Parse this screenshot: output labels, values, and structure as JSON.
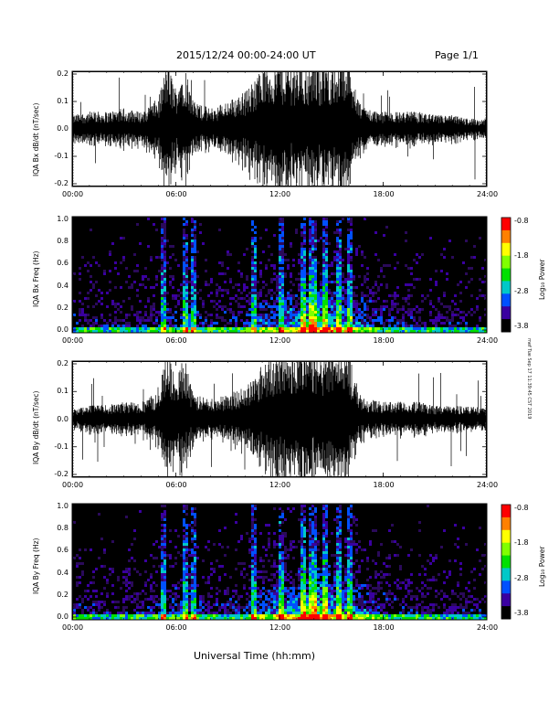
{
  "header": {
    "date_range": "2015/12/24  00:00-24:00 UT",
    "page": "Page 1/1"
  },
  "xaxis": {
    "ticks": [
      "00:00",
      "06:00",
      "12:00",
      "18:00",
      "24:00"
    ],
    "label": "Universal Time (hh:mm)"
  },
  "colorbar": {
    "ticks": [
      "-0.8",
      "-1.8",
      "-2.8",
      "-3.8"
    ],
    "label": "Log₁₀ Power",
    "colors": [
      "#ff0000",
      "#ff8000",
      "#ffff00",
      "#80ff00",
      "#00e000",
      "#00c8c8",
      "#0050ff",
      "#3a00a0",
      "#000000"
    ]
  },
  "side_stamp": "mef Tue Sep 17 11:39:45 CST 2019",
  "chart_data": [
    {
      "type": "line",
      "title": "",
      "ylabel": "IQA Bx dB/dt (nT/sec)",
      "xlabel": "",
      "xlim": [
        "00:00",
        "24:00"
      ],
      "ylim": [
        -0.2,
        0.2
      ],
      "yticks": [
        "0.2",
        "0.1",
        "0.0",
        "-0.1",
        "-0.2"
      ],
      "grid": false,
      "series": [
        {
          "x_hours": [
            0,
            1,
            2,
            3,
            4,
            5,
            5.5,
            6,
            6.5,
            7,
            8,
            9,
            10,
            10.5,
            11,
            12,
            13,
            14,
            15,
            16,
            16.5,
            17,
            18,
            19,
            20,
            21,
            22,
            23,
            24
          ],
          "amplitude": [
            0.04,
            0.05,
            0.05,
            0.06,
            0.05,
            0.09,
            0.2,
            0.12,
            0.2,
            0.08,
            0.06,
            0.08,
            0.11,
            0.14,
            0.18,
            0.2,
            0.2,
            0.2,
            0.2,
            0.2,
            0.09,
            0.06,
            0.05,
            0.05,
            0.05,
            0.04,
            0.04,
            0.03,
            0.03
          ]
        }
      ]
    },
    {
      "type": "heatmap",
      "title": "",
      "ylabel": "IQA Bx Freq (Hz)",
      "xlabel": "",
      "xlim": [
        "00:00",
        "24:00"
      ],
      "ylim": [
        0.0,
        1.0
      ],
      "yticks": [
        "1.0",
        "0.8",
        "0.6",
        "0.4",
        "0.2",
        "0.0"
      ],
      "zlim": [
        -3.8,
        -0.8
      ],
      "bursts_hours": [
        5.2,
        6.5,
        7.0,
        10.5,
        12.0,
        13.3,
        13.8,
        14.0,
        14.6,
        15.3,
        16.0
      ],
      "activity_hours": [
        0,
        2,
        4,
        6,
        8,
        10,
        12,
        13,
        14,
        15,
        16,
        17,
        18,
        20,
        22,
        24
      ],
      "activity_level": [
        0.25,
        0.2,
        0.25,
        0.35,
        0.25,
        0.3,
        0.5,
        0.6,
        0.8,
        0.6,
        0.5,
        0.4,
        0.3,
        0.22,
        0.2,
        0.2
      ]
    },
    {
      "type": "line",
      "title": "",
      "ylabel": "IQA By dB/dt (nT/sec)",
      "xlabel": "",
      "xlim": [
        "00:00",
        "24:00"
      ],
      "ylim": [
        -0.2,
        0.2
      ],
      "yticks": [
        "0.2",
        "0.1",
        "0.0",
        "-0.1",
        "-0.2"
      ],
      "grid": false,
      "series": [
        {
          "x_hours": [
            0,
            1,
            2,
            3,
            4,
            5,
            5.5,
            6,
            6.5,
            7,
            8,
            9,
            10,
            10.5,
            11,
            12,
            13,
            14,
            15,
            16,
            16.5,
            17,
            18,
            19,
            20,
            21,
            22,
            23,
            24
          ],
          "amplitude": [
            0.03,
            0.04,
            0.04,
            0.05,
            0.05,
            0.08,
            0.2,
            0.11,
            0.2,
            0.07,
            0.06,
            0.07,
            0.1,
            0.12,
            0.16,
            0.2,
            0.2,
            0.2,
            0.2,
            0.2,
            0.08,
            0.06,
            0.05,
            0.05,
            0.05,
            0.04,
            0.04,
            0.04,
            0.03
          ]
        }
      ]
    },
    {
      "type": "heatmap",
      "title": "",
      "ylabel": "IQA By Freq (Hz)",
      "xlabel": "",
      "xlim": [
        "00:00",
        "24:00"
      ],
      "ylim": [
        0.0,
        1.0
      ],
      "yticks": [
        "1.0",
        "0.8",
        "0.6",
        "0.4",
        "0.2",
        "0.0"
      ],
      "zlim": [
        -3.8,
        -0.8
      ],
      "bursts_hours": [
        5.2,
        6.5,
        7.0,
        10.5,
        12.0,
        13.3,
        13.8,
        14.0,
        14.6,
        15.3,
        16.0
      ],
      "activity_hours": [
        0,
        2,
        4,
        6,
        8,
        10,
        12,
        13,
        14,
        15,
        16,
        17,
        18,
        20,
        22,
        24
      ],
      "activity_level": [
        0.25,
        0.2,
        0.25,
        0.35,
        0.25,
        0.3,
        0.55,
        0.65,
        0.85,
        0.6,
        0.5,
        0.4,
        0.3,
        0.22,
        0.2,
        0.2
      ]
    }
  ]
}
